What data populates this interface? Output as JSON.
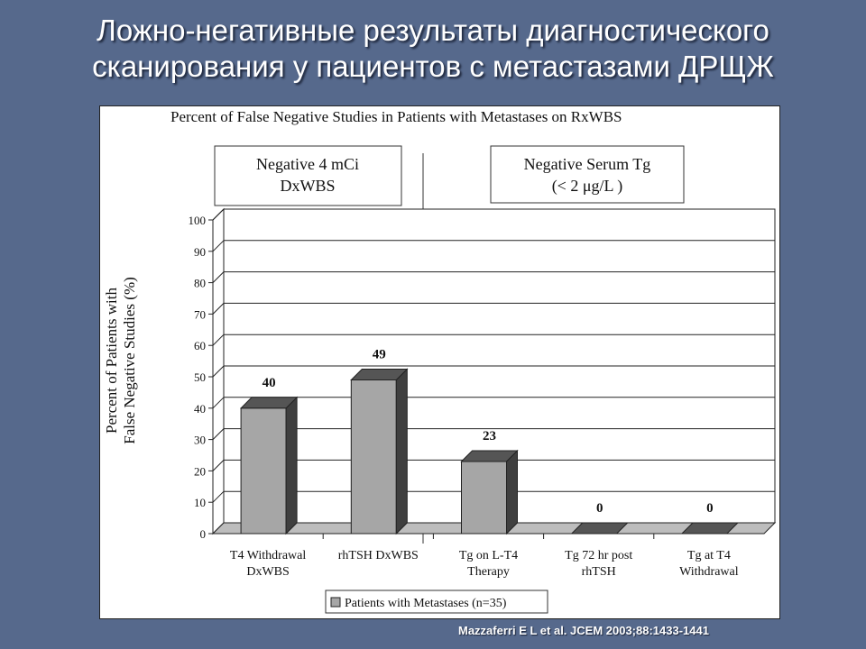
{
  "slide": {
    "title_line1": "Ложно-негативные результаты диагностического",
    "title_line2": "сканирования у пациентов с метастазами ДРЩЖ",
    "citation": "Mazzaferri E L et al. JCEM 2003;88:1433-1441",
    "background_color": "#56698c"
  },
  "chart_data": {
    "type": "bar",
    "title": "Percent of False Negative Studies in Patients with Metastases on RxWBS",
    "group_labels": [
      {
        "line1": "Negative 4 mCi",
        "line2": "DxWBS"
      },
      {
        "line1": "Negative Serum Tg",
        "line2": "(< 2 μg/L )"
      }
    ],
    "ylabel_line1": "Percent of Patients with",
    "ylabel_line2": "False Negative Studies (%)",
    "ylim": [
      0,
      100
    ],
    "yticks": [
      "0",
      "10",
      "20",
      "30",
      "40",
      "50",
      "60",
      "70",
      "80",
      "90",
      "100"
    ],
    "categories": [
      {
        "line1": "T4 Withdrawal",
        "line2": "DxWBS"
      },
      {
        "line1": "rhTSH DxWBS",
        "line2": ""
      },
      {
        "line1": "Tg on L-T4",
        "line2": "Therapy"
      },
      {
        "line1": "Tg 72 hr post",
        "line2": "rhTSH"
      },
      {
        "line1": "Tg at T4",
        "line2": "Withdrawal"
      }
    ],
    "values": [
      40,
      49,
      23,
      0,
      0
    ],
    "value_labels": [
      "40",
      "49",
      "23",
      "0",
      "0"
    ],
    "legend": "Patients with Metastases (n=35)",
    "legend_position": "bottom",
    "grid": true,
    "bar_color": "#a6a6a6"
  }
}
